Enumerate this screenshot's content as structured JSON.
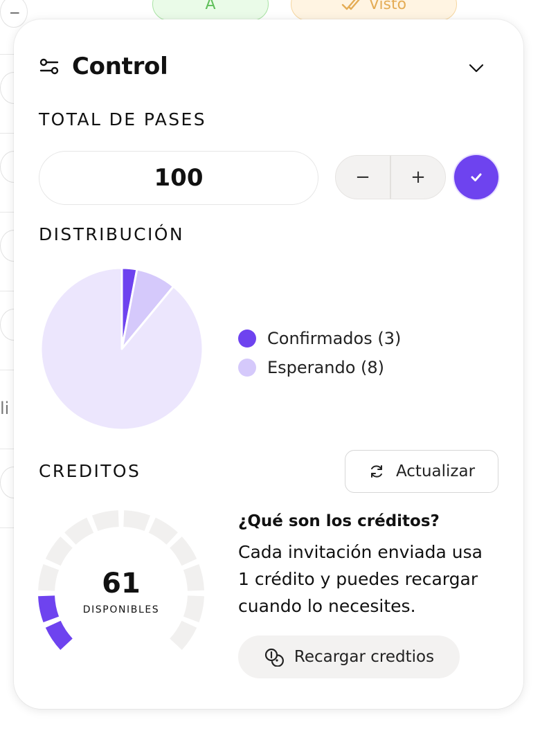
{
  "background": {
    "minus_label": "−",
    "partial_text": "li",
    "pill_green_label": "A",
    "pill_orange_label": "Visto"
  },
  "card": {
    "title": "Control",
    "header_icon": "sliders-icon",
    "collapse_icon": "chevron-down-icon"
  },
  "total_passes": {
    "section_title": "TOTAL DE PASES",
    "value": "100",
    "decrement_label": "−",
    "increment_label": "+",
    "confirm_icon": "check-icon"
  },
  "distribution": {
    "section_title": "DISTRIBUCIÓN",
    "legend": [
      {
        "label": "Confirmados (3)",
        "color": "#6e43ef"
      },
      {
        "label": "Esperando (8)",
        "color": "#d5c9fb"
      }
    ]
  },
  "chart_data": {
    "type": "pie",
    "slices": [
      {
        "label": "Confirmados",
        "value": 3,
        "color": "#6e43ef"
      },
      {
        "label": "Esperando",
        "value": 8,
        "color": "#d5c9fb"
      },
      {
        "label": "",
        "value": 89,
        "color": "#ece6fd"
      }
    ]
  },
  "credits": {
    "section_title": "CREDITOS",
    "refresh_label": "Actualizar",
    "refresh_icon": "refresh-icon",
    "available_value": "61",
    "available_label": "DISPONIBLES",
    "gauge_filled_segments": 2,
    "gauge_total_segments": 12,
    "info_question": "¿Qué son los créditos?",
    "info_line_1": "Cada invitación enviada usa",
    "info_line_2": "1 crédito y puedes recargar",
    "info_line_3": "cuando lo necesites.",
    "recharge_label": "Recargar credtios",
    "recharge_icon": "coins-icon",
    "accent_color": "#6e43ef",
    "track_color": "#f1f0ef"
  }
}
